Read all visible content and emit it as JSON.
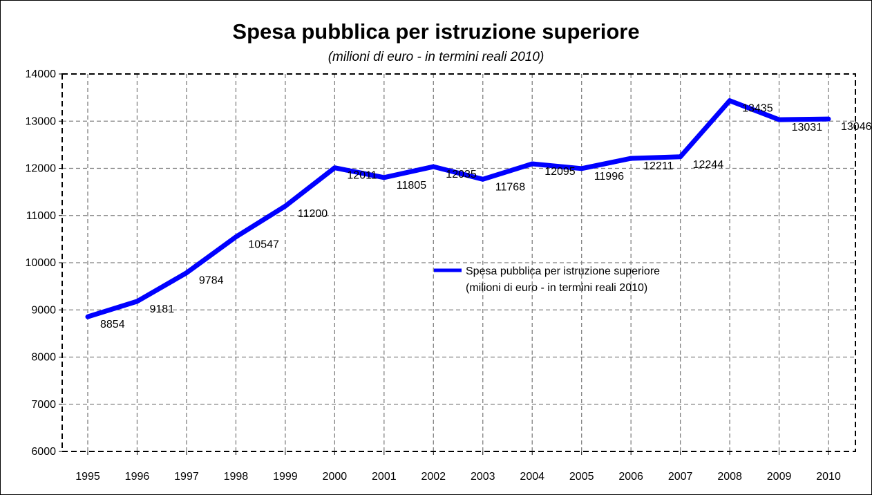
{
  "chart_data": {
    "type": "line",
    "title": "Spesa pubblica per istruzione superiore",
    "subtitle": "(milioni di euro - in termini reali 2010)",
    "x": [
      "1995",
      "1996",
      "1997",
      "1998",
      "1999",
      "2000",
      "2001",
      "2002",
      "2003",
      "2004",
      "2005",
      "2006",
      "2007",
      "2008",
      "2009",
      "2010"
    ],
    "series": [
      {
        "name_lines": [
          "Spesa pubblica per istruzione superiore",
          "(milioni di euro - in termini reali 2010)"
        ],
        "values": [
          8854,
          9181,
          9784,
          10547,
          11200,
          12011,
          11805,
          12035,
          11768,
          12095,
          11996,
          12211,
          12244,
          13435,
          13031,
          13046
        ],
        "data_labels": [
          "8854",
          "9181",
          "9784",
          "10547",
          "11200",
          "12011",
          "11805",
          "12035",
          "11768",
          "12095",
          "11996",
          "12211",
          "12244",
          "13435",
          "13031",
          "13046"
        ],
        "color": "#0000ff"
      }
    ],
    "ylim": [
      6000,
      14000
    ],
    "yticks": [
      6000,
      7000,
      8000,
      9000,
      10000,
      11000,
      12000,
      13000,
      14000
    ],
    "ytick_labels": [
      "6000",
      "7000",
      "8000",
      "9000",
      "10000",
      "11000",
      "12000",
      "13000",
      "14000"
    ],
    "xlabel": "",
    "ylabel": "",
    "grid": true,
    "legend_position": "right-middle",
    "colors": {
      "line": "#0000ff",
      "grid": "#808080",
      "plot_border": "#000000"
    }
  }
}
